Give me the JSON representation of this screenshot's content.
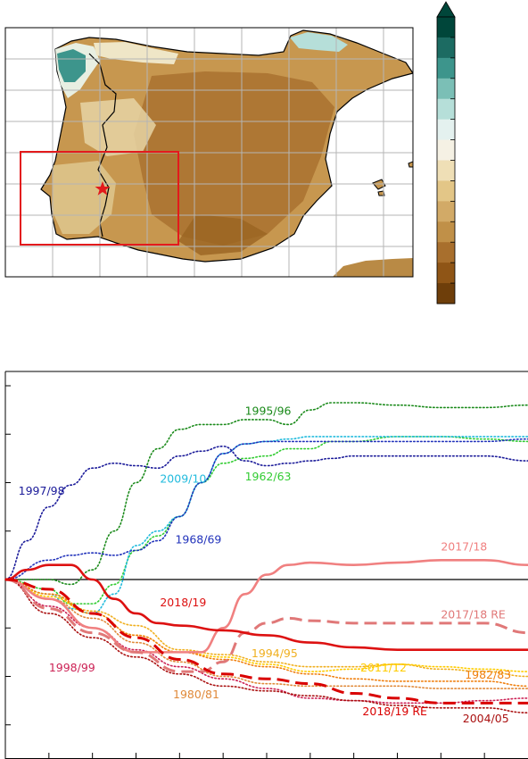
{
  "map": {
    "colorbar_colors": [
      "#00463a",
      "#1c6b62",
      "#3d958c",
      "#7bbfb6",
      "#b6dfd9",
      "#e4f1ef",
      "#f5f1e4",
      "#efdfb6",
      "#e3c687",
      "#d2aa67",
      "#c09048",
      "#a86f2d",
      "#8f5516",
      "#6e3e0a"
    ],
    "land_color": "#c7974f",
    "study_box_color": "#e31a1c",
    "marker": "star"
  },
  "chart_data": {
    "type": "line",
    "xlim": [
      0,
      12
    ],
    "ylim": [
      -4,
      4
    ],
    "grid": false,
    "zero_line": true,
    "series": [
      {
        "name": "1995/96",
        "color": "#1a8a1a",
        "style": "dotted",
        "x": [
          0,
          1,
          1.5,
          2,
          2.5,
          3,
          3.5,
          4,
          4.5,
          5,
          5.5,
          6,
          6.5,
          7,
          7.5,
          8,
          9,
          10,
          11,
          12
        ],
        "y": [
          0,
          0,
          -0.1,
          0.2,
          1,
          2,
          2.7,
          3.1,
          3.2,
          3.2,
          3.3,
          3.3,
          3.2,
          3.5,
          3.65,
          3.65,
          3.6,
          3.55,
          3.55,
          3.6
        ]
      },
      {
        "name": "1962/63",
        "color": "#33cc33",
        "style": "dotted",
        "x": [
          0,
          1,
          1.5,
          2,
          2.5,
          3,
          3.5,
          4,
          4.5,
          5,
          5.5,
          6,
          6.5,
          7,
          7.5,
          8,
          9,
          10,
          11,
          12
        ],
        "y": [
          0,
          -0.2,
          -0.5,
          -0.5,
          -0.1,
          0.6,
          0.9,
          1.3,
          2.0,
          2.4,
          2.5,
          2.55,
          2.7,
          2.7,
          2.85,
          2.85,
          2.95,
          2.95,
          2.9,
          2.85
        ]
      },
      {
        "name": "2009/10",
        "color": "#22bbdd",
        "style": "dotted",
        "x": [
          0,
          1,
          1.5,
          2,
          2.5,
          3,
          3.5,
          4,
          4.5,
          5,
          5.5,
          6,
          6.5,
          7,
          7.5,
          8,
          9,
          10,
          11,
          12
        ],
        "y": [
          0,
          -0.3,
          -0.6,
          -0.7,
          -0.3,
          0.7,
          1.0,
          1.3,
          2.0,
          2.6,
          2.8,
          2.85,
          2.9,
          2.95,
          2.95,
          2.95,
          2.95,
          2.95,
          2.95,
          2.95
        ]
      },
      {
        "name": "1968/69",
        "color": "#2233bb",
        "style": "dotted",
        "x": [
          0,
          1,
          1.5,
          2,
          2.5,
          3,
          3.5,
          4,
          4.5,
          5,
          5.5,
          6,
          6.5,
          7,
          7.5,
          8,
          9,
          10,
          11,
          12
        ],
        "y": [
          0,
          0.4,
          0.5,
          0.55,
          0.5,
          0.6,
          0.8,
          1.3,
          2.0,
          2.6,
          2.8,
          2.85,
          2.85,
          2.85,
          2.85,
          2.85,
          2.85,
          2.85,
          2.85,
          2.9
        ]
      },
      {
        "name": "1997/98",
        "color": "#1a1a99",
        "style": "dotted",
        "x": [
          0,
          0.5,
          1,
          1.5,
          2,
          2.5,
          3,
          3.5,
          4,
          4.5,
          5,
          5.5,
          6,
          6.5,
          7,
          7.5,
          8,
          9,
          10,
          11,
          12
        ],
        "y": [
          0,
          0.8,
          1.5,
          1.95,
          2.3,
          2.4,
          2.35,
          2.3,
          2.55,
          2.65,
          2.75,
          2.45,
          2.35,
          2.4,
          2.45,
          2.5,
          2.55,
          2.55,
          2.55,
          2.55,
          2.45
        ]
      },
      {
        "name": "2017/18",
        "color": "#f08080",
        "style": "solid",
        "x": [
          0,
          1,
          2,
          3,
          4,
          4.5,
          5,
          5.5,
          6,
          6.5,
          7,
          8,
          9,
          10,
          11,
          12
        ],
        "y": [
          0,
          -0.4,
          -1,
          -1.5,
          -1.5,
          -1.5,
          -1.0,
          -0.3,
          0.1,
          0.3,
          0.35,
          0.3,
          0.35,
          0.4,
          0.4,
          0.3
        ]
      },
      {
        "name": "2017/18 RE",
        "color": "#e07878",
        "style": "dashed",
        "x": [
          0,
          1,
          2,
          3,
          4,
          4.5,
          5,
          5.5,
          6,
          6.5,
          7,
          8,
          9,
          10,
          11,
          12
        ],
        "y": [
          0,
          -0.6,
          -1.1,
          -1.5,
          -1.9,
          -1.9,
          -1.7,
          -1.1,
          -0.9,
          -0.8,
          -0.85,
          -0.9,
          -0.9,
          -0.9,
          -0.9,
          -1.1
        ]
      },
      {
        "name": "2018/19",
        "color": "#dd1111",
        "style": "solid",
        "x": [
          0,
          0.5,
          1,
          1.5,
          2,
          2.5,
          3,
          3.5,
          4,
          5,
          6,
          7,
          8,
          9,
          10,
          11,
          12
        ],
        "y": [
          0,
          0.2,
          0.3,
          0.3,
          0,
          -0.4,
          -0.7,
          -0.9,
          -0.95,
          -1.05,
          -1.15,
          -1.3,
          -1.4,
          -1.45,
          -1.45,
          -1.45,
          -1.45
        ]
      },
      {
        "name": "2018/19 RE",
        "color": "#d90000",
        "style": "dashed",
        "x": [
          0,
          1,
          2,
          3,
          4,
          5,
          6,
          7,
          8,
          9,
          10,
          11,
          12
        ],
        "y": [
          0,
          -0.2,
          -0.7,
          -1.2,
          -1.65,
          -1.95,
          -2.05,
          -2.15,
          -2.35,
          -2.45,
          -2.55,
          -2.55,
          -2.55
        ]
      },
      {
        "name": "1994/95",
        "color": "#f0b020",
        "style": "dotted",
        "x": [
          0,
          1,
          2,
          3,
          4,
          5,
          6,
          7,
          8,
          9,
          10,
          11,
          12
        ],
        "y": [
          0,
          -0.3,
          -0.65,
          -0.95,
          -1.45,
          -1.55,
          -1.7,
          -1.8,
          -1.8,
          -1.75,
          -1.85,
          -1.9,
          -2.0
        ]
      },
      {
        "name": "2011/12",
        "color": "#ffcc00",
        "style": "dotted",
        "x": [
          0,
          1,
          2,
          3,
          4,
          5,
          6,
          7,
          8,
          9,
          10,
          11,
          12
        ],
        "y": [
          0,
          -0.35,
          -0.7,
          -1.15,
          -1.5,
          -1.6,
          -1.75,
          -1.9,
          -1.85,
          -1.75,
          -1.8,
          -1.85,
          -1.9
        ]
      },
      {
        "name": "1982/83",
        "color": "#f08010",
        "style": "dotted",
        "x": [
          0,
          1,
          2,
          3,
          4,
          5,
          6,
          7,
          8,
          9,
          10,
          11,
          12
        ],
        "y": [
          0,
          -0.3,
          -0.7,
          -1.15,
          -1.5,
          -1.65,
          -1.8,
          -1.95,
          -2.05,
          -2.1,
          -2.1,
          -2.1,
          -2.2
        ]
      },
      {
        "name": "1980/81",
        "color": "#e08a3a",
        "style": "dotted",
        "x": [
          0,
          1,
          2,
          3,
          4,
          5,
          6,
          7,
          8,
          9,
          10,
          11,
          12
        ],
        "y": [
          0,
          -0.4,
          -0.8,
          -1.3,
          -1.7,
          -2.0,
          -2.15,
          -2.2,
          -2.2,
          -2.2,
          -2.25,
          -2.25,
          -2.25
        ]
      },
      {
        "name": "1998/99",
        "color": "#cc2255",
        "style": "dotted",
        "x": [
          0,
          1,
          2,
          3,
          4,
          5,
          6,
          7,
          8,
          9,
          10,
          11,
          12
        ],
        "y": [
          0,
          -0.55,
          -1.0,
          -1.45,
          -1.8,
          -2.05,
          -2.25,
          -2.45,
          -2.5,
          -2.55,
          -2.55,
          -2.5,
          -2.45
        ]
      },
      {
        "name": "2004/05",
        "color": "#aa1111",
        "style": "dotted",
        "x": [
          0,
          1,
          2,
          3,
          4,
          5,
          6,
          7,
          8,
          9,
          10,
          11,
          12
        ],
        "y": [
          0,
          -0.7,
          -1.2,
          -1.6,
          -1.95,
          -2.2,
          -2.3,
          -2.4,
          -2.5,
          -2.6,
          -2.65,
          -2.65,
          -2.75
        ]
      }
    ],
    "annotations": [
      {
        "text": "1995/96",
        "series": "1995/96",
        "x": 5.5,
        "y": 3.4
      },
      {
        "text": "1962/63",
        "series": "1962/63",
        "x": 5.5,
        "y": 2.05
      },
      {
        "text": "2009/10",
        "series": "2009/10",
        "x": 3.55,
        "y": 2.0
      },
      {
        "text": "1968/69",
        "series": "1968/69",
        "x": 3.9,
        "y": 0.75
      },
      {
        "text": "1997/98",
        "series": "1997/98",
        "x": 0.3,
        "y": 1.75
      },
      {
        "text": "2017/18",
        "series": "2017/18",
        "x": 10.0,
        "y": 0.6
      },
      {
        "text": "2017/18 RE",
        "series": "2017/18 RE",
        "x": 10.0,
        "y": -0.8
      },
      {
        "text": "2018/19",
        "series": "2018/19",
        "x": 3.55,
        "y": -0.55
      },
      {
        "text": "1994/95",
        "series": "1994/95",
        "x": 5.65,
        "y": -1.6
      },
      {
        "text": "2011/12",
        "series": "2011/12",
        "x": 8.15,
        "y": -1.9
      },
      {
        "text": "1982/83",
        "series": "1982/83",
        "x": 10.55,
        "y": -2.05
      },
      {
        "text": "1980/81",
        "series": "1980/81",
        "x": 3.85,
        "y": -2.45
      },
      {
        "text": "1998/99",
        "series": "1998/99",
        "x": 1.0,
        "y": -1.9
      },
      {
        "text": "2018/19 RE",
        "series": "2018/19 RE",
        "x": 8.2,
        "y": -2.8
      },
      {
        "text": "2004/05",
        "series": "2004/05",
        "x": 10.5,
        "y": -2.95
      }
    ]
  }
}
